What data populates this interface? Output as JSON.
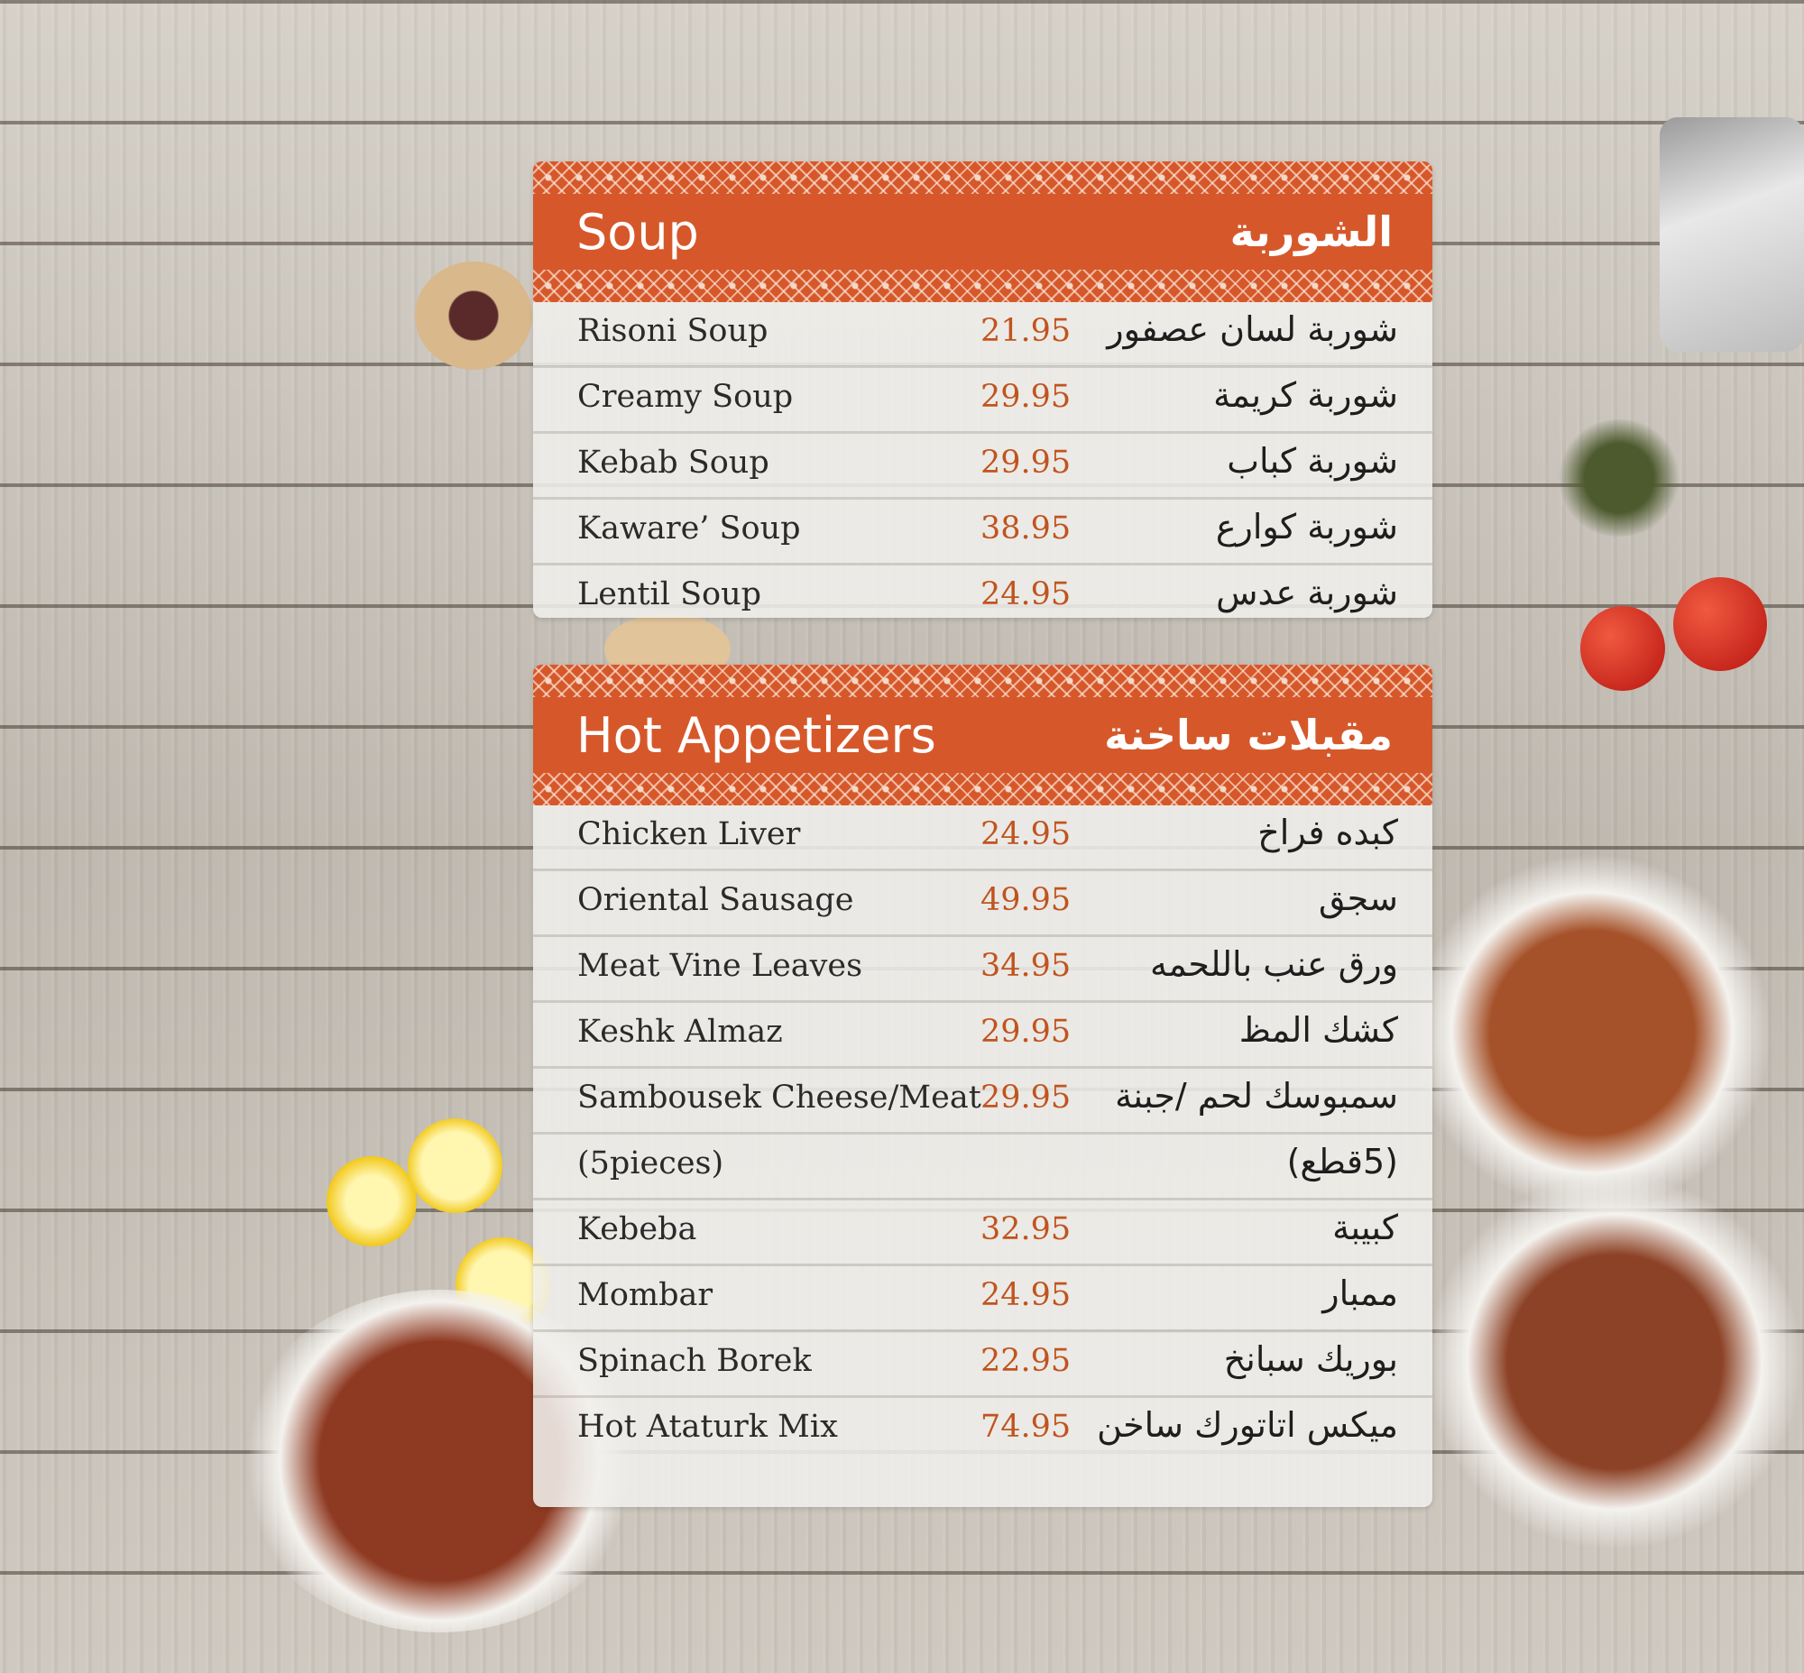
{
  "colors": {
    "header": "#d6582a",
    "price": "#c0541e",
    "text": "#2a2a2a"
  },
  "sections": [
    {
      "title_en": "Soup",
      "title_ar": "الشوربة",
      "items": [
        {
          "en": "Risoni Soup",
          "price": "21.95",
          "ar": "شوربة لسان عصفور"
        },
        {
          "en": "Creamy Soup",
          "price": "29.95",
          "ar": "شوربة كريمة"
        },
        {
          "en": "Kebab Soup",
          "price": "29.95",
          "ar": "شوربة كباب"
        },
        {
          "en": "Kaware’ Soup",
          "price": "38.95",
          "ar": "شوربة كوارع"
        },
        {
          "en": "Lentil Soup",
          "price": "24.95",
          "ar": "شوربة عدس"
        }
      ]
    },
    {
      "title_en": "Hot Appetizers",
      "title_ar": "مقبلات ساخنة",
      "items": [
        {
          "en": "Chicken Liver",
          "price": "24.95",
          "ar": "كبده فراخ"
        },
        {
          "en": "Oriental Sausage",
          "price": "49.95",
          "ar": "سجق"
        },
        {
          "en": "Meat Vine Leaves",
          "price": "34.95",
          "ar": "ورق عنب باللحمه"
        },
        {
          "en": "Keshk Almaz",
          "price": "29.95",
          "ar": "كشك المظ"
        },
        {
          "en": "Sambousek Cheese/Meat",
          "price": "29.95",
          "ar": "سمبوسك لحم /جبنة"
        },
        {
          "en": "(5pieces)",
          "price": "",
          "ar": "(5قطع)"
        },
        {
          "en": "Kebeba",
          "price": "32.95",
          "ar": "كبيبة"
        },
        {
          "en": "Mombar",
          "price": "24.95",
          "ar": "ممبار"
        },
        {
          "en": "Spinach Borek",
          "price": "22.95",
          "ar": "بوريك سبانخ"
        },
        {
          "en": "Hot Ataturk Mix",
          "price": "74.95",
          "ar": "ميكس اتاتورك ساخن"
        }
      ]
    }
  ]
}
